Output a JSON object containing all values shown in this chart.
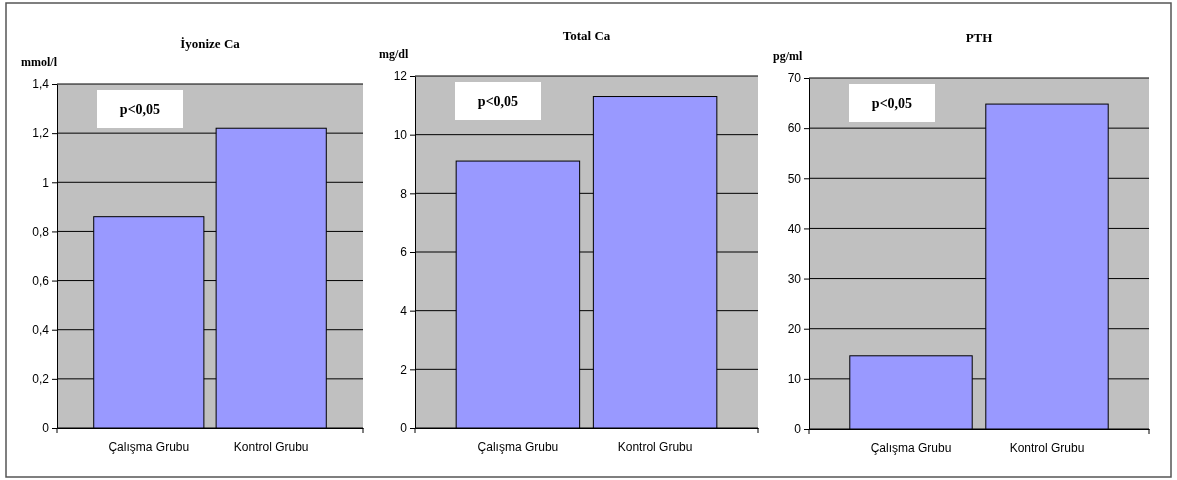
{
  "chart_data": [
    {
      "type": "bar",
      "title": "İyonize Ca",
      "ylabel": "mmol/l",
      "categories": [
        "Çalışma Grubu",
        "Kontrol Grubu"
      ],
      "values": [
        0.86,
        1.22
      ],
      "color": "#9999ff",
      "ylim": [
        0,
        1.4
      ],
      "yticks": [
        0,
        {
          "value": 0.2,
          "label": "0,2"
        },
        {
          "value": 0.4,
          "label": "0,4"
        },
        {
          "value": 0.6,
          "label": "0,6"
        },
        {
          "value": 0.8,
          "label": "0,8"
        },
        1,
        {
          "value": 1.2,
          "label": "1,2"
        },
        {
          "value": 1.4,
          "label": "1,4"
        }
      ],
      "grid": "y",
      "annotations": [
        "p<0,05"
      ]
    },
    {
      "type": "bar",
      "title": "Total Ca",
      "ylabel": "mg/dl",
      "categories": [
        "Çalışma Grubu",
        "Kontrol Grubu"
      ],
      "values": [
        9.1,
        11.3
      ],
      "color": "#9999ff",
      "ylim": [
        0,
        12
      ],
      "yticks": [
        0,
        2,
        4,
        6,
        8,
        10,
        12
      ],
      "grid": "y",
      "annotations": [
        "p<0,05"
      ]
    },
    {
      "type": "bar",
      "title": "PTH",
      "ylabel": "pg/ml",
      "categories": [
        "Çalışma Grubu",
        "Kontrol Grubu"
      ],
      "values": [
        14.6,
        64.8
      ],
      "color": "#9999ff",
      "ylim": [
        0,
        70
      ],
      "yticks": [
        0,
        10,
        20,
        30,
        40,
        50,
        60,
        70
      ],
      "grid": "y",
      "annotations": [
        "p<0,05"
      ]
    }
  ]
}
